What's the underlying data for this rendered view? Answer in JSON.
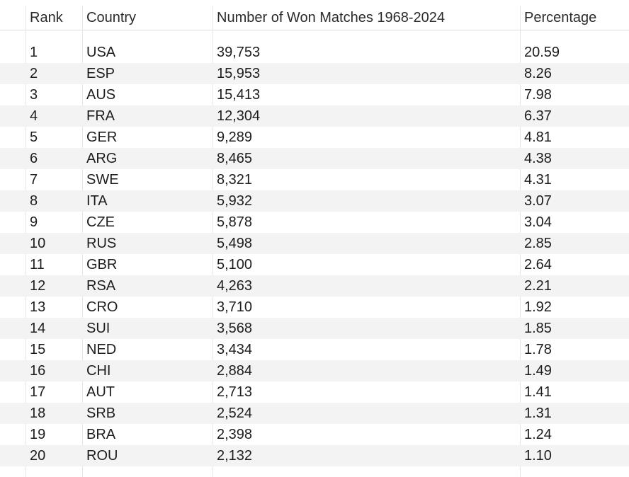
{
  "columns": [
    "Rank",
    "Country",
    "Number of Won Matches 1968-2024",
    "Percentage"
  ],
  "rows": [
    [
      "1",
      "USA",
      "39,753",
      "20.59"
    ],
    [
      "2",
      "ESP",
      "15,953",
      "8.26"
    ],
    [
      "3",
      "AUS",
      "15,413",
      "7.98"
    ],
    [
      "4",
      "FRA",
      "12,304",
      "6.37"
    ],
    [
      "5",
      "GER",
      "9,289",
      "4.81"
    ],
    [
      "6",
      "ARG",
      "8,465",
      "4.38"
    ],
    [
      "7",
      "SWE",
      "8,321",
      "4.31"
    ],
    [
      "8",
      "ITA",
      "5,932",
      "3.07"
    ],
    [
      "9",
      "CZE",
      "5,878",
      "3.04"
    ],
    [
      "10",
      "RUS",
      "5,498",
      "2.85"
    ],
    [
      "11",
      "GBR",
      "5,100",
      "2.64"
    ],
    [
      "12",
      "RSA",
      "4,263",
      "2.21"
    ],
    [
      "13",
      "CRO",
      "3,710",
      "1.92"
    ],
    [
      "14",
      "SUI",
      "3,568",
      "1.85"
    ],
    [
      "15",
      "NED",
      "3,434",
      "1.78"
    ],
    [
      "16",
      "CHI",
      "2,884",
      "1.49"
    ],
    [
      "17",
      "AUT",
      "2,713",
      "1.41"
    ],
    [
      "18",
      "SRB",
      "2,524",
      "1.31"
    ],
    [
      "19",
      "BRA",
      "2,398",
      "1.24"
    ],
    [
      "20",
      "ROU",
      "2,132",
      "1.10"
    ]
  ],
  "colors": {
    "alt_row": "#f3f3f4",
    "grid": "#e4e4e4",
    "text": "#1d1d1f"
  }
}
